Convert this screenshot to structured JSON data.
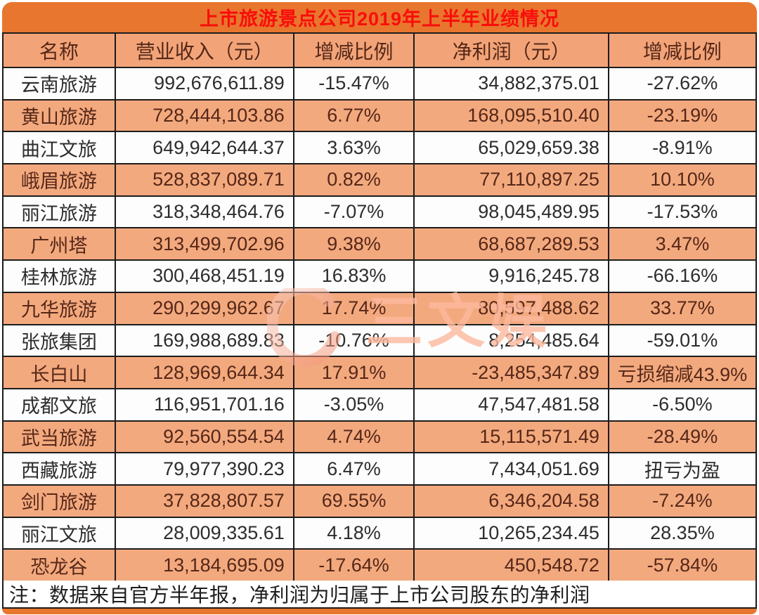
{
  "title": "上市旅游景点公司2019年上半年业绩情况",
  "note": "注：数据来自官方半年报，净利润为归属于上市公司股东的净利润",
  "watermark": {
    "text": "三文娱"
  },
  "colors": {
    "frame_orange": "#e8762e",
    "header_orange": "#f2a478",
    "row_orange": "#f3a97e",
    "row_white": "#fdfdfd",
    "title_red": "#f90d0b",
    "dark_text": "#2d2d2d",
    "maroon_text": "#552718",
    "border_black": "#1c1c1c",
    "watermark_pink": "#fcb89e"
  },
  "table": {
    "headers": [
      "名称",
      "营业收入（元）",
      "增减比例",
      "净利润（元）",
      "增减比例"
    ],
    "rows": [
      [
        "云南旅游",
        "992,676,611.89",
        "-15.47%",
        "34,882,375.01",
        "-27.62%"
      ],
      [
        "黄山旅游",
        "728,444,103.86",
        "6.77%",
        "168,095,510.40",
        "-23.19%"
      ],
      [
        "曲江文旅",
        "649,942,644.37",
        "3.63%",
        "65,029,659.38",
        "-8.91%"
      ],
      [
        "峨眉旅游",
        "528,837,089.71",
        "0.82%",
        "77,110,897.25",
        "10.10%"
      ],
      [
        "丽江旅游",
        "318,348,464.76",
        "-7.07%",
        "98,045,489.95",
        "-17.53%"
      ],
      [
        "广州塔",
        "313,499,702.96",
        "9.38%",
        "68,687,289.53",
        "3.47%"
      ],
      [
        "桂林旅游",
        "300,468,451.19",
        "16.83%",
        "9,916,245.78",
        "-66.16%"
      ],
      [
        "九华旅游",
        "290,299,962.67",
        "17.74%",
        "80,597,488.62",
        "33.77%"
      ],
      [
        "张旅集团",
        "169,988,689.83",
        "-10.76%",
        "8,254,485.64",
        "-59.01%"
      ],
      [
        "长白山",
        "128,969,644.34",
        "17.91%",
        "-23,485,347.89",
        "亏损缩减43.9%"
      ],
      [
        "成都文旅",
        "116,951,701.16",
        "-3.05%",
        "47,547,481.58",
        "-6.50%"
      ],
      [
        "武当旅游",
        "92,560,554.54",
        "4.74%",
        "15,115,571.49",
        "-28.49%"
      ],
      [
        "西藏旅游",
        "79,977,390.23",
        "6.47%",
        "7,434,051.69",
        "扭亏为盈"
      ],
      [
        "剑门旅游",
        "37,828,807.57",
        "69.55%",
        "6,346,204.58",
        "-7.24%"
      ],
      [
        "丽江文旅",
        "28,009,335.61",
        "4.18%",
        "10,265,234.45",
        "28.35%"
      ],
      [
        "恐龙谷",
        "13,184,695.09",
        "-17.64%",
        "450,548.72",
        "-57.84%"
      ]
    ]
  },
  "chart_data": {
    "type": "table",
    "title": "上市旅游景点公司2019年上半年业绩情况",
    "columns": [
      "名称",
      "营业收入（元）",
      "增减比例",
      "净利润（元）",
      "增减比例"
    ],
    "rows": [
      [
        "云南旅游",
        992676611.89,
        "-15.47%",
        34882375.01,
        "-27.62%"
      ],
      [
        "黄山旅游",
        728444103.86,
        "6.77%",
        168095510.4,
        "-23.19%"
      ],
      [
        "曲江文旅",
        649942644.37,
        "3.63%",
        65029659.38,
        "-8.91%"
      ],
      [
        "峨眉旅游",
        528837089.71,
        "0.82%",
        77110897.25,
        "10.10%"
      ],
      [
        "丽江旅游",
        318348464.76,
        "-7.07%",
        98045489.95,
        "-17.53%"
      ],
      [
        "广州塔",
        313499702.96,
        "9.38%",
        68687289.53,
        "3.47%"
      ],
      [
        "桂林旅游",
        300468451.19,
        "16.83%",
        9916245.78,
        "-66.16%"
      ],
      [
        "九华旅游",
        290299962.67,
        "17.74%",
        80597488.62,
        "33.77%"
      ],
      [
        "张旅集团",
        169988689.83,
        "-10.76%",
        8254485.64,
        "-59.01%"
      ],
      [
        "长白山",
        128969644.34,
        "17.91%",
        -23485347.89,
        "亏损缩减43.9%"
      ],
      [
        "成都文旅",
        116951701.16,
        "-3.05%",
        47547481.58,
        "-6.50%"
      ],
      [
        "武当旅游",
        92560554.54,
        "4.74%",
        15115571.49,
        "-28.49%"
      ],
      [
        "西藏旅游",
        79977390.23,
        "6.47%",
        7434051.69,
        "扭亏为盈"
      ],
      [
        "剑门旅游",
        37828807.57,
        "69.55%",
        6346204.58,
        "-7.24%"
      ],
      [
        "丽江文旅",
        28009335.61,
        "4.18%",
        10265234.45,
        "28.35%"
      ],
      [
        "恐龙谷",
        13184695.09,
        "-17.64%",
        450548.72,
        "-57.84%"
      ]
    ],
    "footnote": "注：数据来自官方半年报，净利润为归属于上市公司股东的净利润"
  }
}
